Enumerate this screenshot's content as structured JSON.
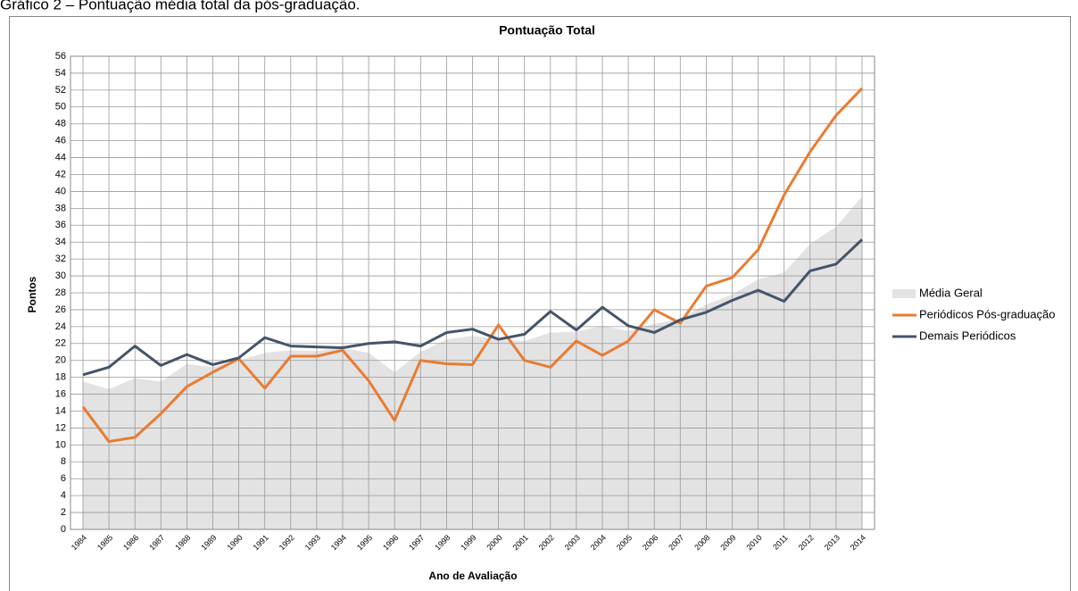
{
  "caption": "Gráfico 2 – Pontuação média total da pós-graduação.",
  "chart_data": {
    "type": "line",
    "title": "Pontuação Total",
    "y_label": "Pontos",
    "x_label": "Ano de Avaliação",
    "categories": [
      "1984",
      "1985",
      "1986",
      "1987",
      "1988",
      "1989",
      "1990",
      "1991",
      "1992",
      "1993",
      "1994",
      "1995",
      "1996",
      "1997",
      "1998",
      "1999",
      "2000",
      "2001",
      "2002",
      "2003",
      "2004",
      "2005",
      "2006",
      "2007",
      "2008",
      "2009",
      "2010",
      "2011",
      "2012",
      "2013",
      "2014"
    ],
    "series": [
      {
        "name": "Média Geral",
        "kind": "area",
        "color": "#e3e3e3",
        "values": [
          17.5,
          16.6,
          17.9,
          17.5,
          19.6,
          19.2,
          20.0,
          20.9,
          21.2,
          21.1,
          21.5,
          20.9,
          18.6,
          21.0,
          22.5,
          22.9,
          22.5,
          22.3,
          23.3,
          23.4,
          24.1,
          23.5,
          24.3,
          25.0,
          26.6,
          27.8,
          29.6,
          30.4,
          33.8,
          35.8,
          39.4
        ]
      },
      {
        "name": "Periódicos Pós-graduação",
        "kind": "line",
        "color": "#ea7b31",
        "values": [
          14.5,
          10.4,
          10.9,
          13.7,
          16.9,
          18.6,
          20.2,
          16.7,
          20.5,
          20.5,
          21.2,
          17.6,
          12.9,
          20.0,
          19.6,
          19.5,
          24.2,
          20.0,
          19.2,
          22.3,
          20.6,
          22.3,
          26.0,
          24.4,
          28.8,
          29.8,
          33.1,
          39.6,
          44.7,
          49.0,
          52.2
        ]
      },
      {
        "name": "Demais Periódicos",
        "kind": "line",
        "color": "#44546a",
        "values": [
          18.3,
          19.2,
          21.7,
          19.4,
          20.7,
          19.5,
          20.3,
          22.7,
          21.7,
          21.6,
          21.5,
          22.0,
          22.2,
          21.7,
          23.3,
          23.7,
          22.5,
          23.1,
          25.8,
          23.6,
          26.3,
          24.1,
          23.3,
          24.8,
          25.7,
          27.1,
          28.3,
          27.0,
          30.6,
          31.4,
          34.3
        ]
      }
    ],
    "ylim": [
      0,
      56
    ],
    "yticks": [
      0,
      2,
      4,
      6,
      8,
      10,
      12,
      14,
      16,
      18,
      20,
      22,
      24,
      26,
      28,
      30,
      32,
      34,
      36,
      38,
      40,
      42,
      44,
      46,
      48,
      50,
      52,
      54,
      56
    ],
    "grid": true,
    "legend": "right"
  }
}
